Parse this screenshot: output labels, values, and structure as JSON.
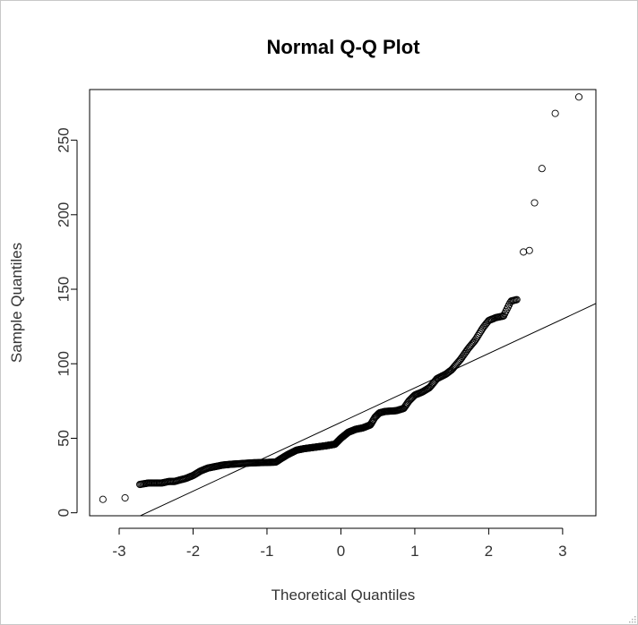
{
  "window": {
    "frame_color": "#c8c8c8"
  },
  "chart_data": {
    "type": "scatter",
    "title": "Normal Q-Q Plot",
    "xlabel": "Theoretical Quantiles",
    "ylabel": "Sample Quantiles",
    "xlim": [
      -3.4,
      3.45
    ],
    "ylim": [
      -2,
      284
    ],
    "x_ticks": [
      -3,
      -2,
      -1,
      0,
      1,
      2,
      3
    ],
    "y_ticks": [
      0,
      50,
      100,
      150,
      200,
      250
    ],
    "reference_line": {
      "slope": 23.1,
      "intercept": 60.7
    },
    "marker": "open-circle",
    "color": "#000000",
    "anchor_points": [
      [
        -3.22,
        9
      ],
      [
        -2.92,
        10
      ],
      [
        -2.72,
        19
      ],
      [
        -2.6,
        20
      ],
      [
        -2.5,
        20
      ],
      [
        -2.42,
        20
      ],
      [
        -2.33,
        21
      ],
      [
        -2.25,
        21
      ],
      [
        -2.18,
        22
      ],
      [
        -2.1,
        23
      ],
      [
        -2.0,
        25
      ],
      [
        -1.9,
        28
      ],
      [
        -1.8,
        30
      ],
      [
        -1.7,
        31
      ],
      [
        -1.6,
        32
      ],
      [
        -1.5,
        32.5
      ],
      [
        -1.35,
        33
      ],
      [
        -1.2,
        33.5
      ],
      [
        -1.0,
        33.8
      ],
      [
        -0.88,
        34
      ],
      [
        -0.82,
        36
      ],
      [
        -0.72,
        39
      ],
      [
        -0.6,
        42
      ],
      [
        -0.5,
        43
      ],
      [
        -0.35,
        44
      ],
      [
        -0.2,
        45
      ],
      [
        -0.08,
        46
      ],
      [
        0.0,
        50
      ],
      [
        0.1,
        54
      ],
      [
        0.2,
        56
      ],
      [
        0.3,
        57
      ],
      [
        0.4,
        59
      ],
      [
        0.46,
        64
      ],
      [
        0.52,
        67
      ],
      [
        0.6,
        68
      ],
      [
        0.75,
        68.5
      ],
      [
        0.85,
        70
      ],
      [
        0.92,
        75
      ],
      [
        1.0,
        79
      ],
      [
        1.1,
        81
      ],
      [
        1.2,
        84
      ],
      [
        1.3,
        90
      ],
      [
        1.42,
        93
      ],
      [
        1.5,
        96
      ],
      [
        1.62,
        103
      ],
      [
        1.72,
        110
      ],
      [
        1.82,
        116
      ],
      [
        1.92,
        124
      ],
      [
        2.0,
        129
      ],
      [
        2.1,
        131
      ],
      [
        2.2,
        132
      ],
      [
        2.3,
        142
      ],
      [
        2.38,
        143
      ]
    ],
    "tail_points": [
      [
        2.47,
        175
      ],
      [
        2.55,
        176
      ],
      [
        2.62,
        208
      ],
      [
        2.72,
        231
      ],
      [
        2.9,
        268
      ],
      [
        3.22,
        279
      ]
    ],
    "dense_point_count": 460
  }
}
